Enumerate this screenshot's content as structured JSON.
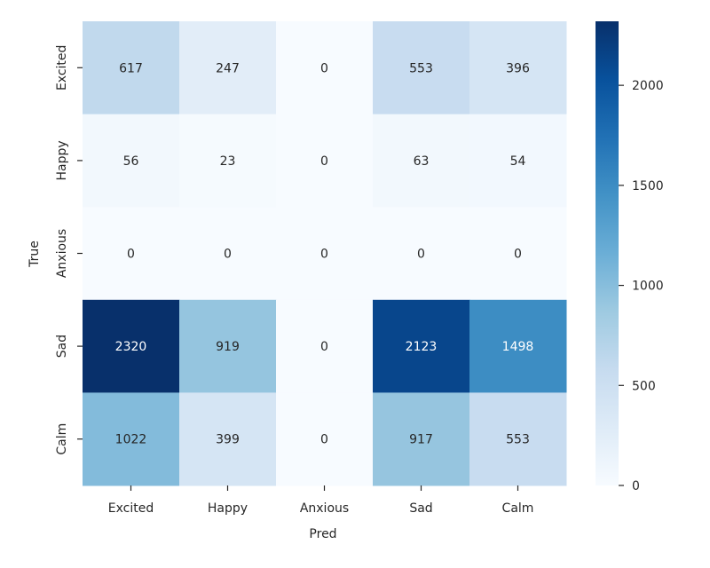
{
  "chart_data": {
    "type": "heatmap",
    "xlabel": "Pred",
    "ylabel": "True",
    "x_categories": [
      "Excited",
      "Happy",
      "Anxious",
      "Sad",
      "Calm"
    ],
    "y_categories": [
      "Excited",
      "Happy",
      "Anxious",
      "Sad",
      "Calm"
    ],
    "values": [
      [
        617,
        247,
        0,
        553,
        396
      ],
      [
        56,
        23,
        0,
        63,
        54
      ],
      [
        0,
        0,
        0,
        0,
        0
      ],
      [
        2320,
        919,
        0,
        2123,
        1498
      ],
      [
        1022,
        399,
        0,
        917,
        553
      ]
    ],
    "colormap": "Blues",
    "vmin": 0,
    "vmax": 2320,
    "colorbar_ticks": [
      0,
      500,
      1000,
      1500,
      2000
    ],
    "grid": false,
    "legend": "colorbar-right"
  }
}
